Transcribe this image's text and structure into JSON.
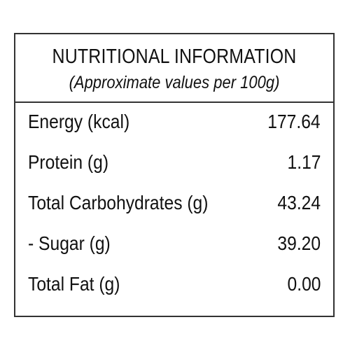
{
  "panel": {
    "title": "NUTRITIONAL INFORMATION",
    "subtitle": "(Approximate values per 100g)"
  },
  "rows": [
    {
      "label": "Energy (kcal)",
      "value": "177.64"
    },
    {
      "label": "Protein (g)",
      "value": "1.17"
    },
    {
      "label": "Total Carbohydrates (g)",
      "value": "43.24"
    },
    {
      "label": "- Sugar (g)",
      "value": "39.20"
    },
    {
      "label": "Total Fat (g)",
      "value": "0.00"
    }
  ],
  "colors": {
    "border": "#333333",
    "text": "#111111",
    "background": "#ffffff"
  }
}
